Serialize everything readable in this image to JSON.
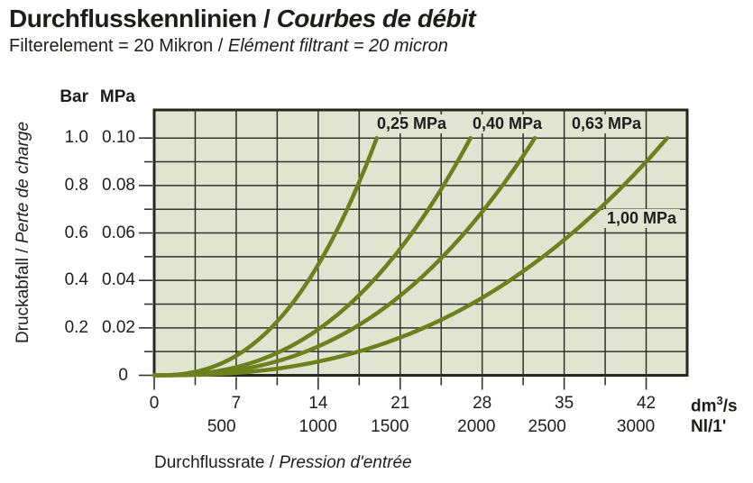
{
  "title": {
    "de": "Durchflusskennlinien",
    "sep": " / ",
    "fr": "Courbes de débit"
  },
  "subtitle": {
    "de": "Filterelement = 20 Mikron",
    "sep": " / ",
    "fr": "Elément filtrant = 20 micron"
  },
  "y_axis": {
    "unit_header_bar": "Bar",
    "unit_header_mpa": "MPa",
    "title": {
      "de": "Druckabfall",
      "sep": " / ",
      "fr": "Perte de charge"
    },
    "bar_ticks": [
      "1.0",
      "0.8",
      "0.6",
      "0.4",
      "0.2"
    ],
    "mpa_ticks": [
      "0.10",
      "0.08",
      "0.06",
      "0.04",
      "0.02"
    ],
    "zero_label": "0"
  },
  "x_axis": {
    "title": {
      "de": "Durchflussrate",
      "sep": " / ",
      "fr": "Pression d'entrée"
    },
    "dm3_ticks": [
      "0",
      "7",
      "14",
      "21",
      "28",
      "35",
      "42"
    ],
    "nl_ticks": [
      "500",
      "1000",
      "1500",
      "2000",
      "2500",
      "3000"
    ],
    "unit_dm3": {
      "pre": "dm",
      "sup": "3",
      "post": "/s"
    },
    "unit_nl": "Nl/1'"
  },
  "chart_data": {
    "type": "line",
    "title": "Durchflusskennlinien / Courbes de débit",
    "subtitle": "Filterelement = 20 Mikron / Elément filtrant = 20 micron",
    "xlabel": "Durchflussrate / Pression d'entrée",
    "ylabel": "Druckabfall / Perte de charge",
    "x_units": [
      "dm3/s",
      "Nl/1'"
    ],
    "y_units": [
      "Bar",
      "MPa"
    ],
    "x_range_dm3s": [
      0,
      45.5
    ],
    "y_range_mpa": [
      0,
      0.112
    ],
    "x_gridline_step_dm3s": 3.5,
    "y_gridline_step_mpa": 0.01,
    "grid": true,
    "legend_position": "labels-inside-plot-top",
    "colors": {
      "curve": "#6e7f1e",
      "plot_bg": "#e0e4d0",
      "grid": "#33332c",
      "border": "#26261f"
    },
    "model": {
      "dp_mpa_max": 0.1,
      "exponent": 2.5
    },
    "series": [
      {
        "name": "0,25 MPa",
        "inlet_pressure_mpa": 0.25,
        "q_max_dm3s": 19.0,
        "points_q_dm3s_dp_mpa": [
          [
            0,
            0
          ],
          [
            7.6,
            0.01
          ],
          [
            10.0,
            0.02
          ],
          [
            11.7,
            0.03
          ],
          [
            13.2,
            0.04
          ],
          [
            14.4,
            0.05
          ],
          [
            15.5,
            0.06
          ],
          [
            16.5,
            0.07
          ],
          [
            17.4,
            0.08
          ],
          [
            18.2,
            0.09
          ],
          [
            19.0,
            0.1
          ]
        ]
      },
      {
        "name": "0,40 MPa",
        "inlet_pressure_mpa": 0.4,
        "q_max_dm3s": 27.0,
        "points_q_dm3s_dp_mpa": [
          [
            0,
            0
          ],
          [
            10.8,
            0.01
          ],
          [
            14.2,
            0.02
          ],
          [
            16.7,
            0.03
          ],
          [
            18.7,
            0.04
          ],
          [
            20.5,
            0.05
          ],
          [
            22.0,
            0.06
          ],
          [
            23.4,
            0.07
          ],
          [
            24.7,
            0.08
          ],
          [
            25.9,
            0.09
          ],
          [
            27.0,
            0.1
          ]
        ]
      },
      {
        "name": "0,63 MPa",
        "inlet_pressure_mpa": 0.63,
        "q_max_dm3s": 32.5,
        "points_q_dm3s_dp_mpa": [
          [
            0,
            0
          ],
          [
            12.9,
            0.01
          ],
          [
            17.1,
            0.02
          ],
          [
            20.1,
            0.03
          ],
          [
            22.5,
            0.04
          ],
          [
            24.6,
            0.05
          ],
          [
            26.5,
            0.06
          ],
          [
            28.2,
            0.07
          ],
          [
            29.7,
            0.08
          ],
          [
            31.2,
            0.09
          ],
          [
            32.5,
            0.1
          ]
        ]
      },
      {
        "name": "1,00 MPa",
        "inlet_pressure_mpa": 1.0,
        "q_max_dm3s": 43.8,
        "points_q_dm3s_dp_mpa": [
          [
            0,
            0
          ],
          [
            17.4,
            0.01
          ],
          [
            23.0,
            0.02
          ],
          [
            27.1,
            0.03
          ],
          [
            30.4,
            0.04
          ],
          [
            33.2,
            0.05
          ],
          [
            35.7,
            0.06
          ],
          [
            38.0,
            0.07
          ],
          [
            40.1,
            0.08
          ],
          [
            42.0,
            0.09
          ],
          [
            43.8,
            0.1
          ]
        ]
      }
    ]
  }
}
